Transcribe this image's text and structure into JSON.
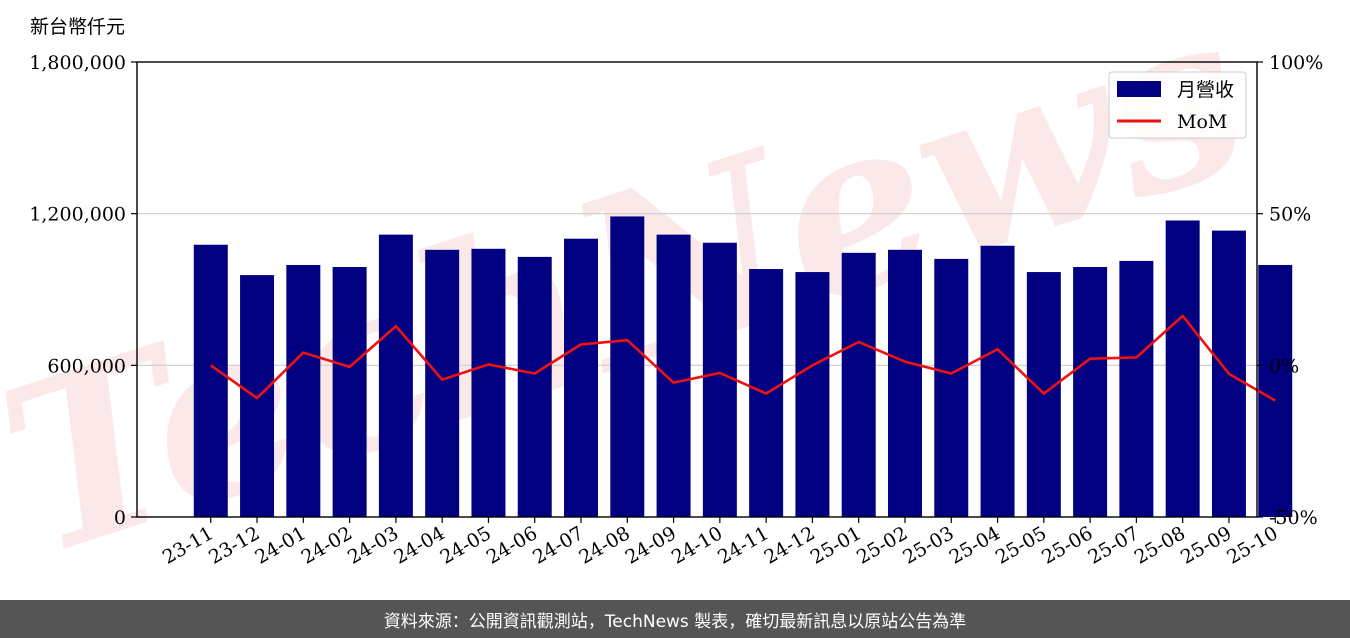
{
  "chart_data": {
    "type": "bar",
    "y_unit_label": "新台幣仟元",
    "categories": [
      "23-11",
      "23-12",
      "24-01",
      "24-02",
      "24-03",
      "24-04",
      "24-05",
      "24-06",
      "24-07",
      "24-08",
      "24-09",
      "24-10",
      "24-11",
      "24-12",
      "25-01",
      "25-02",
      "25-03",
      "25-04",
      "25-05",
      "25-06",
      "25-07",
      "25-08",
      "25-09",
      "25-10"
    ],
    "series": [
      {
        "name": "月營收",
        "kind": "bar",
        "axis": "left",
        "color": "#000080",
        "values": [
          1077000,
          957000,
          997000,
          989000,
          1117000,
          1057000,
          1061000,
          1029000,
          1101000,
          1189000,
          1117000,
          1085000,
          981000,
          969000,
          1045000,
          1057000,
          1021000,
          1073000,
          969000,
          989000,
          1013000,
          1173000,
          1133000,
          997000
        ]
      },
      {
        "name": "MoM",
        "kind": "line",
        "axis": "right",
        "color": "#ee1111",
        "values": [
          0,
          -10.8,
          4.2,
          -0.5,
          12.9,
          -4.7,
          0.3,
          -2.7,
          6.9,
          8.3,
          -5.7,
          -2.5,
          -9.3,
          0,
          7.7,
          1.2,
          -2.7,
          5.3,
          -9.3,
          2.2,
          2.6,
          16.3,
          -2.8,
          -11.6
        ]
      }
    ],
    "y_left": {
      "lim": [
        0,
        1800000
      ],
      "ticks": [
        "0",
        "600,000",
        "1,200,000",
        "1,800,000"
      ]
    },
    "y_right": {
      "lim": [
        -50,
        100
      ],
      "ticks": [
        "-50%",
        "0%",
        "50%",
        "100%"
      ]
    },
    "grid": true,
    "legend_position": "top-right"
  },
  "watermark": "TechNews",
  "footer": {
    "text": "資料來源：公開資訊觀測站，TechNews 製表，確切最新訊息以原站公告為準"
  }
}
